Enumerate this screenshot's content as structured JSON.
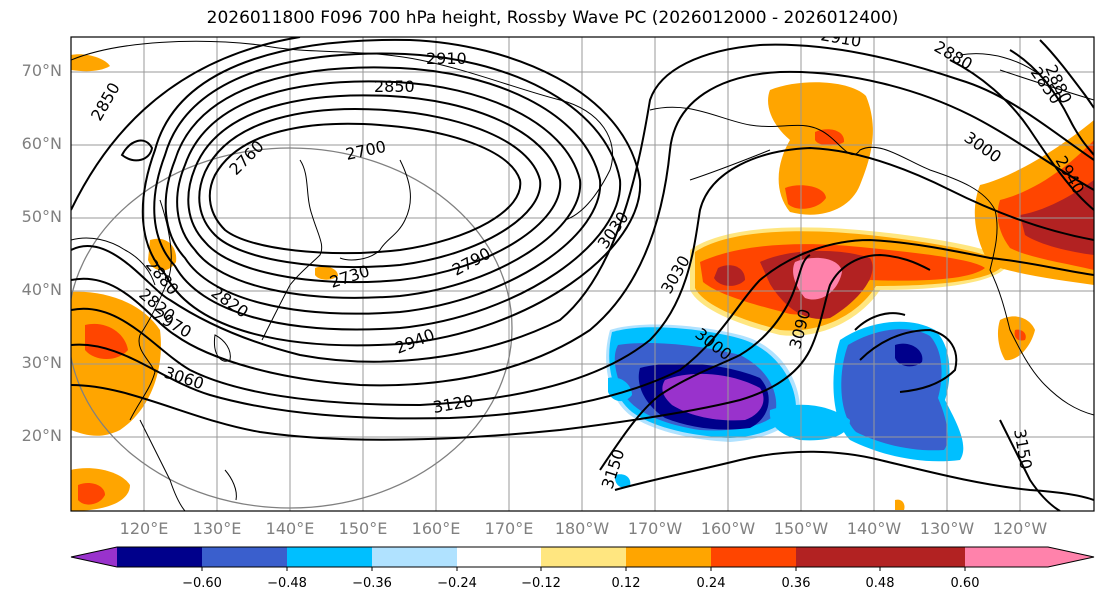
{
  "title": "2026011800 F096 700 hPa height, Rossby Wave PC (2026012000 - 2026012400)",
  "lat_labels": [
    "70°N",
    "60°N",
    "50°N",
    "40°N",
    "30°N",
    "20°N"
  ],
  "lon_labels": [
    "120°E",
    "130°E",
    "140°E",
    "150°E",
    "160°E",
    "170°E",
    "180°W",
    "170°W",
    "160°W",
    "150°W",
    "140°W",
    "130°W",
    "120°W"
  ],
  "contour_labels": [
    "2910",
    "2850",
    "2850",
    "2760",
    "2700",
    "2880",
    "3000",
    "2940",
    "2880",
    "2850",
    "2820",
    "3030",
    "2730",
    "2790",
    "2880",
    "2820",
    "2970",
    "3060",
    "2940",
    "3120",
    "3030",
    "3090",
    "3000",
    "3150",
    "3150",
    "2910"
  ],
  "colorbar": {
    "tick_labels": [
      "−0.60",
      "−0.48",
      "−0.36",
      "−0.24",
      "−0.12",
      "0.12",
      "0.24",
      "0.36",
      "0.48",
      "0.60"
    ],
    "colors": [
      "#9932cc",
      "#00008b",
      "#3a5fcd",
      "#00bfff",
      "#b0e2ff",
      "#ffffff",
      "#ffe680",
      "#ffa500",
      "#ff4500",
      "#b22222",
      "#ff82ab"
    ]
  }
}
